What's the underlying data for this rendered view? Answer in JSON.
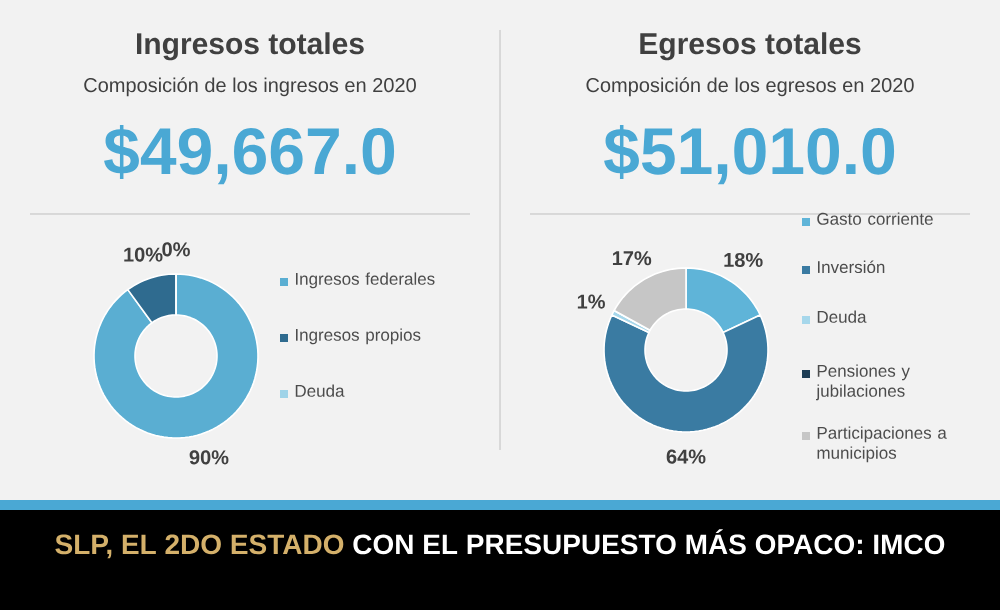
{
  "chart_data": [
    {
      "type": "donut",
      "title": "Ingresos totales",
      "subtitle": "Composición de los ingresos en 2020",
      "annotations": [
        "$49,667.0"
      ],
      "categories": [
        "Ingresos federales",
        "Ingresos propios",
        "Deuda"
      ],
      "values": [
        90,
        10,
        0
      ],
      "value_labels": [
        "90%",
        "10%",
        "0%"
      ],
      "colors": [
        "#5aaed2",
        "#2f6b8f",
        "#9fd3e8"
      ],
      "legend": "right"
    },
    {
      "type": "donut",
      "title": "Egresos totales",
      "subtitle": "Composición de los egresos en 2020",
      "annotations": [
        "$51,010.0",
        "SLP, EL 2DO ESTADO",
        "CON EL PRESUPUESTO MÁS OPACO: IMCO"
      ],
      "categories": [
        "Gasto corriente",
        "Inversión",
        "Deuda",
        "Pensiones y jubilaciones",
        "Participaciones a municipios"
      ],
      "values": [
        18,
        64,
        1,
        0,
        17
      ],
      "value_labels": [
        "18%",
        "64%",
        "1%",
        null,
        "17%"
      ],
      "colors": [
        "#5fb4d8",
        "#3a7ba2",
        "#a6d7eb",
        "#1d3d55",
        "#c6c6c6"
      ],
      "legend": "right"
    }
  ]
}
